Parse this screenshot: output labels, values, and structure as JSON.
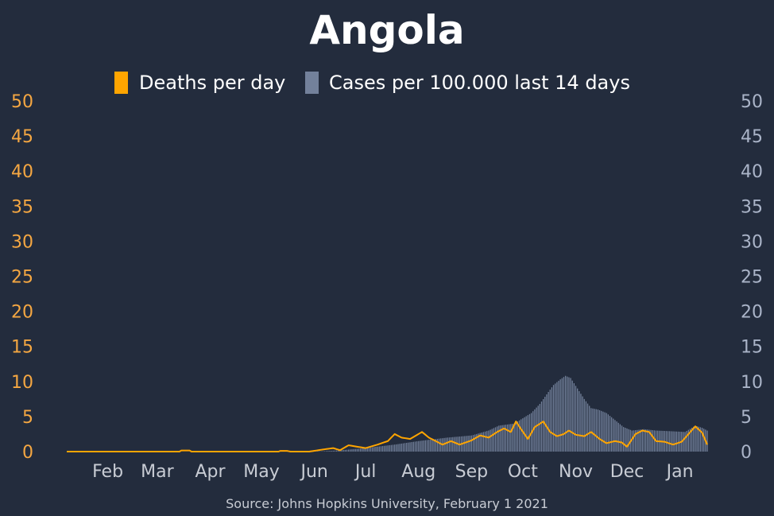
{
  "chart_data": {
    "type": "bar+line",
    "title": "Angola",
    "source": "Source: Johns Hopkins University, February 1 2021",
    "legend": [
      {
        "name": "Deaths per day",
        "color": "#ffa500"
      },
      {
        "name": "Cases per 100.000 last 14 days",
        "color": "#73819b"
      }
    ],
    "legend_position": "top-center",
    "x_start": "2020-01-22",
    "x_end": "2021-01-31",
    "x_ticks": [
      "Feb",
      "Mar",
      "Apr",
      "May",
      "Jun",
      "Jul",
      "Aug",
      "Sep",
      "Oct",
      "Nov",
      "Dec",
      "Jan"
    ],
    "y_left": {
      "ticks": [
        0,
        5,
        10,
        15,
        20,
        25,
        30,
        35,
        40,
        45,
        50
      ],
      "range": [
        0,
        50
      ],
      "color": "#f5a742"
    },
    "y_right": {
      "ticks": [
        0,
        5,
        10,
        15,
        20,
        25,
        30,
        35,
        40,
        45,
        50
      ],
      "range": [
        0,
        50
      ],
      "color": "#aab4c8"
    },
    "grid": false,
    "cases_per_100k_14d": [
      [
        "2020-01-22",
        0
      ],
      [
        "2020-05-25",
        0
      ],
      [
        "2020-06-20",
        0.05
      ],
      [
        "2020-07-01",
        0.2
      ],
      [
        "2020-07-15",
        0.5
      ],
      [
        "2020-08-01",
        1.0
      ],
      [
        "2020-08-15",
        1.5
      ],
      [
        "2020-09-01",
        2.0
      ],
      [
        "2020-09-15",
        2.3
      ],
      [
        "2020-09-25",
        3.0
      ],
      [
        "2020-10-01",
        3.7
      ],
      [
        "2020-10-10",
        4.0
      ],
      [
        "2020-10-20",
        5.5
      ],
      [
        "2020-10-25",
        6.8
      ],
      [
        "2020-10-30",
        8.5
      ],
      [
        "2020-11-02",
        9.5
      ],
      [
        "2020-11-06",
        10.3
      ],
      [
        "2020-11-09",
        10.8
      ],
      [
        "2020-11-12",
        10.5
      ],
      [
        "2020-11-16",
        9.0
      ],
      [
        "2020-11-20",
        7.5
      ],
      [
        "2020-11-24",
        6.2
      ],
      [
        "2020-11-28",
        6.0
      ],
      [
        "2020-12-03",
        5.5
      ],
      [
        "2020-12-08",
        4.5
      ],
      [
        "2020-12-13",
        3.5
      ],
      [
        "2020-12-18",
        3.0
      ],
      [
        "2020-12-25",
        3.2
      ],
      [
        "2021-01-01",
        3.0
      ],
      [
        "2021-01-10",
        2.9
      ],
      [
        "2021-01-18",
        2.8
      ],
      [
        "2021-01-24",
        3.7
      ],
      [
        "2021-01-28",
        3.4
      ],
      [
        "2021-01-31",
        3.0
      ]
    ],
    "deaths_per_day": [
      [
        "2020-01-22",
        0
      ],
      [
        "2020-03-28",
        0
      ],
      [
        "2020-03-29",
        0.15
      ],
      [
        "2020-04-03",
        0.15
      ],
      [
        "2020-04-04",
        0
      ],
      [
        "2020-05-25",
        0
      ],
      [
        "2020-05-26",
        0.1
      ],
      [
        "2020-05-30",
        0.1
      ],
      [
        "2020-06-01",
        0
      ],
      [
        "2020-06-12",
        0
      ],
      [
        "2020-06-20",
        0.3
      ],
      [
        "2020-06-26",
        0.5
      ],
      [
        "2020-06-30",
        0.2
      ],
      [
        "2020-07-05",
        0.9
      ],
      [
        "2020-07-10",
        0.7
      ],
      [
        "2020-07-15",
        0.5
      ],
      [
        "2020-07-22",
        1.0
      ],
      [
        "2020-07-28",
        1.5
      ],
      [
        "2020-08-01",
        2.5
      ],
      [
        "2020-08-05",
        2.0
      ],
      [
        "2020-08-10",
        1.8
      ],
      [
        "2020-08-17",
        2.8
      ],
      [
        "2020-08-21",
        2.0
      ],
      [
        "2020-08-25",
        1.5
      ],
      [
        "2020-08-29",
        1.0
      ],
      [
        "2020-09-03",
        1.5
      ],
      [
        "2020-09-08",
        1.0
      ],
      [
        "2020-09-15",
        1.6
      ],
      [
        "2020-09-20",
        2.3
      ],
      [
        "2020-09-25",
        2.0
      ],
      [
        "2020-09-30",
        2.8
      ],
      [
        "2020-10-04",
        3.3
      ],
      [
        "2020-10-08",
        2.8
      ],
      [
        "2020-10-11",
        4.3
      ],
      [
        "2020-10-14",
        3.2
      ],
      [
        "2020-10-18",
        1.8
      ],
      [
        "2020-10-22",
        3.5
      ],
      [
        "2020-10-27",
        4.3
      ],
      [
        "2020-10-31",
        2.8
      ],
      [
        "2020-11-04",
        2.2
      ],
      [
        "2020-11-08",
        2.5
      ],
      [
        "2020-11-11",
        3.0
      ],
      [
        "2020-11-15",
        2.4
      ],
      [
        "2020-11-20",
        2.2
      ],
      [
        "2020-11-24",
        2.8
      ],
      [
        "2020-11-29",
        1.8
      ],
      [
        "2020-12-03",
        1.2
      ],
      [
        "2020-12-08",
        1.5
      ],
      [
        "2020-12-12",
        1.3
      ],
      [
        "2020-12-15",
        0.7
      ],
      [
        "2020-12-20",
        2.5
      ],
      [
        "2020-12-24",
        3.0
      ],
      [
        "2020-12-28",
        2.8
      ],
      [
        "2021-01-01",
        1.5
      ],
      [
        "2021-01-06",
        1.4
      ],
      [
        "2021-01-11",
        1.0
      ],
      [
        "2021-01-16",
        1.4
      ],
      [
        "2021-01-20",
        2.5
      ],
      [
        "2021-01-24",
        3.6
      ],
      [
        "2021-01-28",
        2.7
      ],
      [
        "2021-01-31",
        1.0
      ]
    ]
  }
}
